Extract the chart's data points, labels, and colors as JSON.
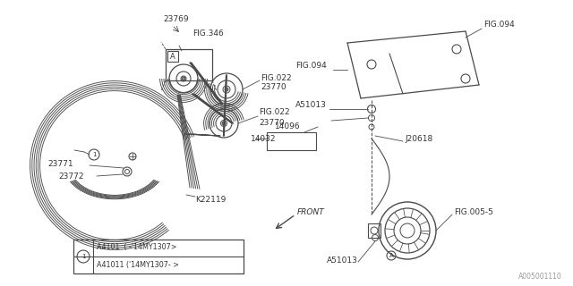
{
  "bg_color": "#ffffff",
  "line_color": "#4a4a4a",
  "text_color": "#333333",
  "watermark": "A005001110",
  "legend_items": [
    "A4101  (-’14MY1307>",
    "A41011 (’14MY1307- >"
  ]
}
